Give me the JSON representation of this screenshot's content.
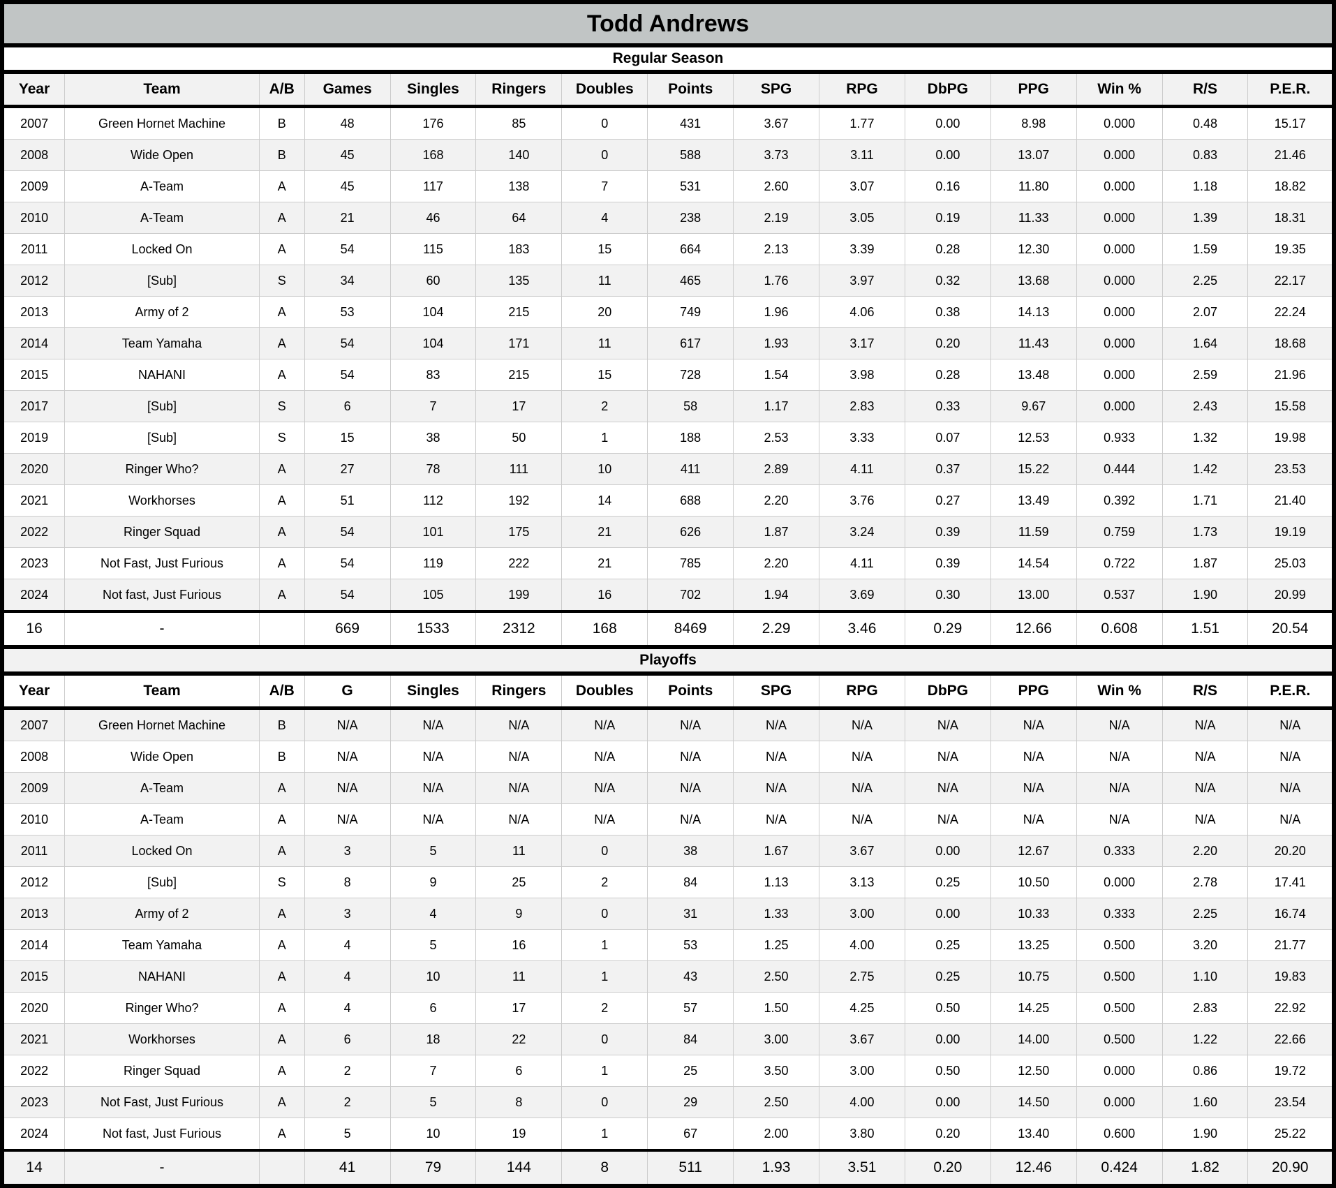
{
  "title": "Todd Andrews",
  "colors": {
    "title_bg": "#c1c5c5",
    "stripe_bg": "#f2f2f2",
    "grid_line": "#cccccc",
    "frame": "#000000"
  },
  "sections": [
    {
      "label": "Regular Season",
      "columns": [
        "Year",
        "Team",
        "A/B",
        "Games",
        "Singles",
        "Ringers",
        "Doubles",
        "Points",
        "SPG",
        "RPG",
        "DbPG",
        "PPG",
        "Win %",
        "R/S",
        "P.E.R."
      ],
      "rows": [
        [
          "2007",
          "Green Hornet Machine",
          "B",
          "48",
          "176",
          "85",
          "0",
          "431",
          "3.67",
          "1.77",
          "0.00",
          "8.98",
          "0.000",
          "0.48",
          "15.17"
        ],
        [
          "2008",
          "Wide Open",
          "B",
          "45",
          "168",
          "140",
          "0",
          "588",
          "3.73",
          "3.11",
          "0.00",
          "13.07",
          "0.000",
          "0.83",
          "21.46"
        ],
        [
          "2009",
          "A-Team",
          "A",
          "45",
          "117",
          "138",
          "7",
          "531",
          "2.60",
          "3.07",
          "0.16",
          "11.80",
          "0.000",
          "1.18",
          "18.82"
        ],
        [
          "2010",
          "A-Team",
          "A",
          "21",
          "46",
          "64",
          "4",
          "238",
          "2.19",
          "3.05",
          "0.19",
          "11.33",
          "0.000",
          "1.39",
          "18.31"
        ],
        [
          "2011",
          "Locked On",
          "A",
          "54",
          "115",
          "183",
          "15",
          "664",
          "2.13",
          "3.39",
          "0.28",
          "12.30",
          "0.000",
          "1.59",
          "19.35"
        ],
        [
          "2012",
          "[Sub]",
          "S",
          "34",
          "60",
          "135",
          "11",
          "465",
          "1.76",
          "3.97",
          "0.32",
          "13.68",
          "0.000",
          "2.25",
          "22.17"
        ],
        [
          "2013",
          "Army of 2",
          "A",
          "53",
          "104",
          "215",
          "20",
          "749",
          "1.96",
          "4.06",
          "0.38",
          "14.13",
          "0.000",
          "2.07",
          "22.24"
        ],
        [
          "2014",
          "Team Yamaha",
          "A",
          "54",
          "104",
          "171",
          "11",
          "617",
          "1.93",
          "3.17",
          "0.20",
          "11.43",
          "0.000",
          "1.64",
          "18.68"
        ],
        [
          "2015",
          "NAHANI",
          "A",
          "54",
          "83",
          "215",
          "15",
          "728",
          "1.54",
          "3.98",
          "0.28",
          "13.48",
          "0.000",
          "2.59",
          "21.96"
        ],
        [
          "2017",
          "[Sub]",
          "S",
          "6",
          "7",
          "17",
          "2",
          "58",
          "1.17",
          "2.83",
          "0.33",
          "9.67",
          "0.000",
          "2.43",
          "15.58"
        ],
        [
          "2019",
          "[Sub]",
          "S",
          "15",
          "38",
          "50",
          "1",
          "188",
          "2.53",
          "3.33",
          "0.07",
          "12.53",
          "0.933",
          "1.32",
          "19.98"
        ],
        [
          "2020",
          "Ringer Who?",
          "A",
          "27",
          "78",
          "111",
          "10",
          "411",
          "2.89",
          "4.11",
          "0.37",
          "15.22",
          "0.444",
          "1.42",
          "23.53"
        ],
        [
          "2021",
          "Workhorses",
          "A",
          "51",
          "112",
          "192",
          "14",
          "688",
          "2.20",
          "3.76",
          "0.27",
          "13.49",
          "0.392",
          "1.71",
          "21.40"
        ],
        [
          "2022",
          "Ringer Squad",
          "A",
          "54",
          "101",
          "175",
          "21",
          "626",
          "1.87",
          "3.24",
          "0.39",
          "11.59",
          "0.759",
          "1.73",
          "19.19"
        ],
        [
          "2023",
          "Not Fast, Just Furious",
          "A",
          "54",
          "119",
          "222",
          "21",
          "785",
          "2.20",
          "4.11",
          "0.39",
          "14.54",
          "0.722",
          "1.87",
          "25.03"
        ],
        [
          "2024",
          "Not fast, Just Furious",
          "A",
          "54",
          "105",
          "199",
          "16",
          "702",
          "1.94",
          "3.69",
          "0.30",
          "13.00",
          "0.537",
          "1.90",
          "20.99"
        ]
      ],
      "totals": [
        "16",
        "-",
        "",
        "669",
        "1533",
        "2312",
        "168",
        "8469",
        "2.29",
        "3.46",
        "0.29",
        "12.66",
        "0.608",
        "1.51",
        "20.54"
      ]
    },
    {
      "label": "Playoffs",
      "columns": [
        "Year",
        "Team",
        "A/B",
        "G",
        "Singles",
        "Ringers",
        "Doubles",
        "Points",
        "SPG",
        "RPG",
        "DbPG",
        "PPG",
        "Win %",
        "R/S",
        "P.E.R."
      ],
      "rows": [
        [
          "2007",
          "Green Hornet Machine",
          "B",
          "N/A",
          "N/A",
          "N/A",
          "N/A",
          "N/A",
          "N/A",
          "N/A",
          "N/A",
          "N/A",
          "N/A",
          "N/A",
          "N/A"
        ],
        [
          "2008",
          "Wide Open",
          "B",
          "N/A",
          "N/A",
          "N/A",
          "N/A",
          "N/A",
          "N/A",
          "N/A",
          "N/A",
          "N/A",
          "N/A",
          "N/A",
          "N/A"
        ],
        [
          "2009",
          "A-Team",
          "A",
          "N/A",
          "N/A",
          "N/A",
          "N/A",
          "N/A",
          "N/A",
          "N/A",
          "N/A",
          "N/A",
          "N/A",
          "N/A",
          "N/A"
        ],
        [
          "2010",
          "A-Team",
          "A",
          "N/A",
          "N/A",
          "N/A",
          "N/A",
          "N/A",
          "N/A",
          "N/A",
          "N/A",
          "N/A",
          "N/A",
          "N/A",
          "N/A"
        ],
        [
          "2011",
          "Locked On",
          "A",
          "3",
          "5",
          "11",
          "0",
          "38",
          "1.67",
          "3.67",
          "0.00",
          "12.67",
          "0.333",
          "2.20",
          "20.20"
        ],
        [
          "2012",
          "[Sub]",
          "S",
          "8",
          "9",
          "25",
          "2",
          "84",
          "1.13",
          "3.13",
          "0.25",
          "10.50",
          "0.000",
          "2.78",
          "17.41"
        ],
        [
          "2013",
          "Army of 2",
          "A",
          "3",
          "4",
          "9",
          "0",
          "31",
          "1.33",
          "3.00",
          "0.00",
          "10.33",
          "0.333",
          "2.25",
          "16.74"
        ],
        [
          "2014",
          "Team Yamaha",
          "A",
          "4",
          "5",
          "16",
          "1",
          "53",
          "1.25",
          "4.00",
          "0.25",
          "13.25",
          "0.500",
          "3.20",
          "21.77"
        ],
        [
          "2015",
          "NAHANI",
          "A",
          "4",
          "10",
          "11",
          "1",
          "43",
          "2.50",
          "2.75",
          "0.25",
          "10.75",
          "0.500",
          "1.10",
          "19.83"
        ],
        [
          "2020",
          "Ringer Who?",
          "A",
          "4",
          "6",
          "17",
          "2",
          "57",
          "1.50",
          "4.25",
          "0.50",
          "14.25",
          "0.500",
          "2.83",
          "22.92"
        ],
        [
          "2021",
          "Workhorses",
          "A",
          "6",
          "18",
          "22",
          "0",
          "84",
          "3.00",
          "3.67",
          "0.00",
          "14.00",
          "0.500",
          "1.22",
          "22.66"
        ],
        [
          "2022",
          "Ringer Squad",
          "A",
          "2",
          "7",
          "6",
          "1",
          "25",
          "3.50",
          "3.00",
          "0.50",
          "12.50",
          "0.000",
          "0.86",
          "19.72"
        ],
        [
          "2023",
          "Not Fast, Just Furious",
          "A",
          "2",
          "5",
          "8",
          "0",
          "29",
          "2.50",
          "4.00",
          "0.00",
          "14.50",
          "0.000",
          "1.60",
          "23.54"
        ],
        [
          "2024",
          "Not fast, Just Furious",
          "A",
          "5",
          "10",
          "19",
          "1",
          "67",
          "2.00",
          "3.80",
          "0.20",
          "13.40",
          "0.600",
          "1.90",
          "25.22"
        ]
      ],
      "totals": [
        "14",
        "-",
        "",
        "41",
        "79",
        "144",
        "8",
        "511",
        "1.93",
        "3.51",
        "0.20",
        "12.46",
        "0.424",
        "1.82",
        "20.90"
      ]
    }
  ]
}
